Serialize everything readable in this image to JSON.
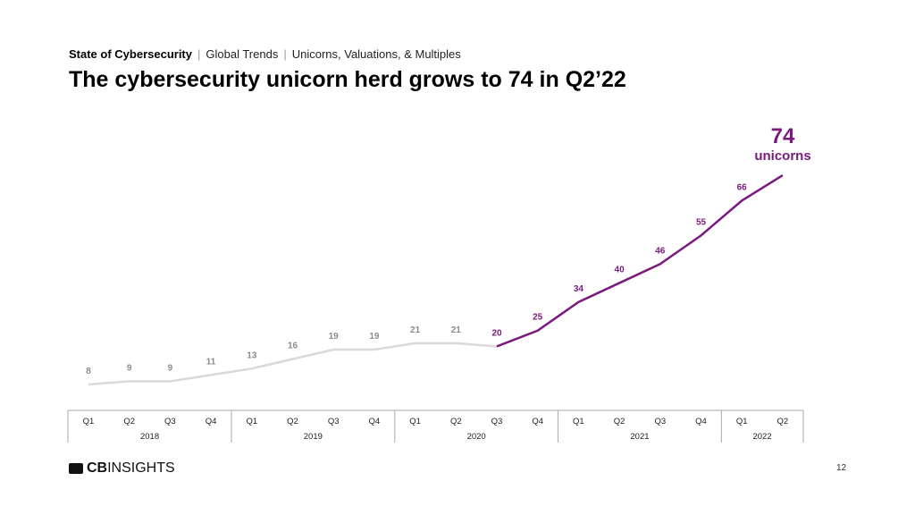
{
  "header": {
    "section": "State of Cybersecurity",
    "subsection": "Global Trends",
    "topic": "Unicorns, Valuations, & Multiples",
    "title": "The cybersecurity unicorn herd grows to 74 in Q2’22"
  },
  "callout": {
    "value": "74",
    "label": "unicorns"
  },
  "footer": {
    "logo_bold": "CB",
    "logo_rest": "INSIGHTS",
    "page": "12"
  },
  "colors": {
    "highlight": "#7a1a7e",
    "muted": "#d9d9d9",
    "muted_label": "#8c8c8c"
  },
  "chart_data": {
    "type": "line",
    "quarters": [
      "Q1",
      "Q2",
      "Q3",
      "Q4",
      "Q1",
      "Q2",
      "Q3",
      "Q4",
      "Q1",
      "Q2",
      "Q3",
      "Q4",
      "Q1",
      "Q2",
      "Q3",
      "Q4",
      "Q1",
      "Q2"
    ],
    "years": [
      {
        "label": "2018",
        "quarters": 4
      },
      {
        "label": "2019",
        "quarters": 4
      },
      {
        "label": "2020",
        "quarters": 4
      },
      {
        "label": "2021",
        "quarters": 4
      },
      {
        "label": "2022",
        "quarters": 2
      }
    ],
    "values": [
      8,
      9,
      9,
      11,
      13,
      16,
      19,
      19,
      21,
      21,
      20,
      25,
      34,
      40,
      46,
      55,
      66,
      74
    ],
    "highlight_from_index": 10,
    "ylabel": "",
    "xlabel": ""
  }
}
